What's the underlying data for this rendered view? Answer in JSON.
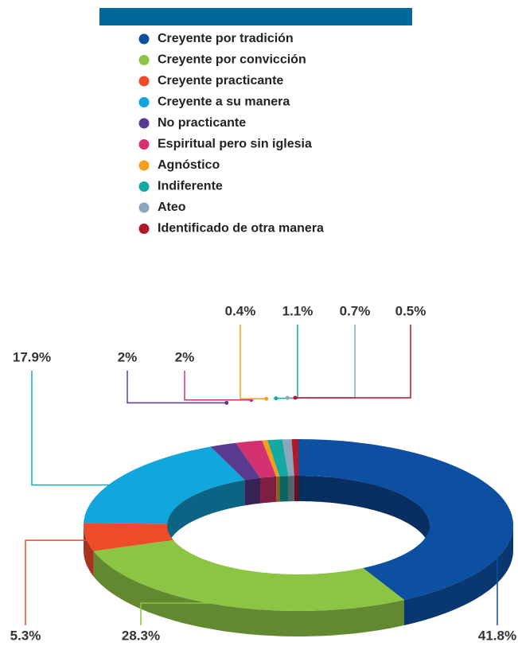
{
  "chart_data": {
    "type": "pie",
    "categories": [
      "Creyente por tradición",
      "Creyente por convicción",
      "Creyente practicante",
      "Creyente a su manera",
      "No practicante",
      "Espiritual pero sin iglesia",
      "Agnóstico",
      "Indiferente",
      "Ateo",
      "Identificado de otra manera"
    ],
    "values": [
      41.8,
      28.3,
      5.3,
      17.9,
      2,
      2,
      0.4,
      1.1,
      0.7,
      0.5
    ],
    "value_labels": [
      "41.8%",
      "28.3%",
      "5.3%",
      "17.9%",
      "2%",
      "2%",
      "0.4%",
      "1.1%",
      "0.7%",
      "0.5%"
    ],
    "colors": [
      "#0d4fa0",
      "#8cc443",
      "#ee4b2b",
      "#12a7dc",
      "#5b3a92",
      "#d5306f",
      "#f29f1a",
      "#15a9a4",
      "#8aa7bd",
      "#b3172a"
    ],
    "legend": "top"
  }
}
